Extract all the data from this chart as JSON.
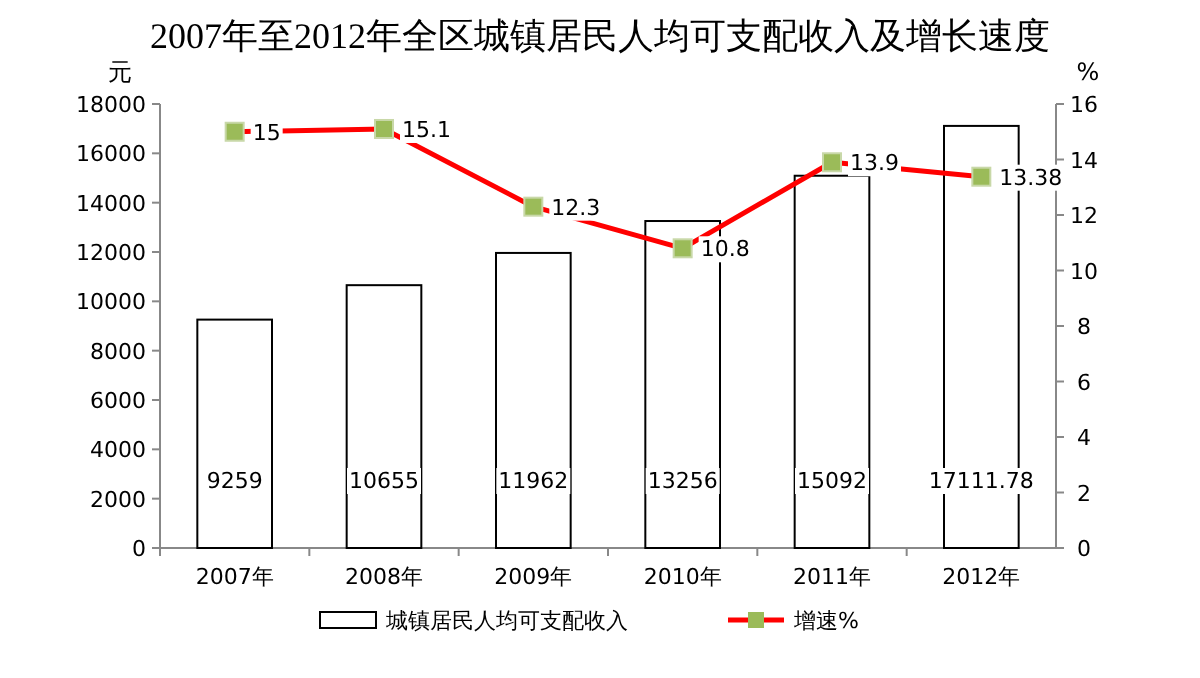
{
  "chart_data": {
    "type": "bar",
    "title": "2007年至2012年全区城镇居民人均可支配收入及增长速度",
    "categories": [
      "2007年",
      "2008年",
      "2009年",
      "2010年",
      "2011年",
      "2012年"
    ],
    "series": [
      {
        "name": "城镇居民人均可支配收入",
        "color": "#ffffff",
        "values": [
          9259,
          10655,
          11962,
          13256,
          15092,
          17111.78
        ]
      },
      {
        "name": "增速%",
        "type": "line",
        "axis": "y2",
        "color": "#ff0000",
        "values": [
          15,
          15.1,
          12.3,
          10.8,
          13.9,
          13.38
        ]
      }
    ],
    "ylabel": "元",
    "y2label": "%",
    "ylim": [
      0,
      18000
    ],
    "yticks": [
      0,
      2000,
      4000,
      6000,
      8000,
      10000,
      12000,
      14000,
      16000,
      18000
    ],
    "y2lim": [
      0,
      16
    ],
    "y2ticks": [
      0,
      2,
      4,
      6,
      8,
      10,
      12,
      14,
      16
    ],
    "data_labels": true,
    "legend": "bottom",
    "marker": "square",
    "grid": false
  }
}
